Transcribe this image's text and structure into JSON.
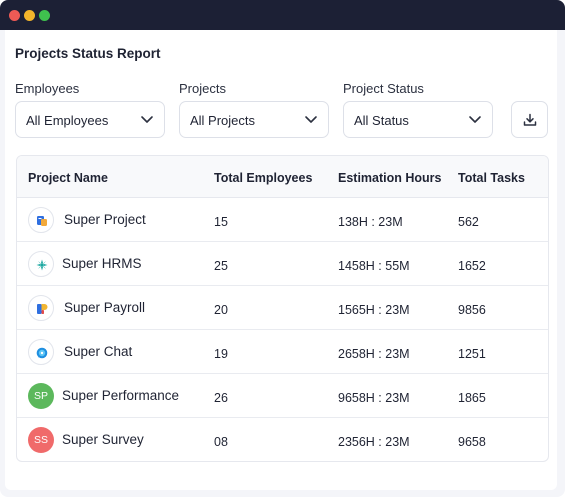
{
  "report": {
    "title": "Projects Status Report"
  },
  "filters": {
    "employees": {
      "label": "Employees",
      "value": "All Employees"
    },
    "projects": {
      "label": "Projects",
      "value": "All Projects"
    },
    "status": {
      "label": "Project Status",
      "value": "All Status"
    }
  },
  "table": {
    "headers": [
      "Project Name",
      "Total Employees",
      "Estimation Hours",
      "Total Tasks"
    ],
    "rows": [
      {
        "name": "Super Project",
        "employees": "15",
        "hours": "138H : 23M",
        "tasks": "562",
        "icon": "super-project-logo"
      },
      {
        "name": "Super HRMS",
        "employees": "25",
        "hours": "1458H : 55M",
        "tasks": "1652",
        "icon": "super-hrms-logo"
      },
      {
        "name": "Super Payroll",
        "employees": "20",
        "hours": "1565H : 23M",
        "tasks": "9856",
        "icon": "super-payroll-logo"
      },
      {
        "name": "Super Chat",
        "employees": "19",
        "hours": "2658H : 23M",
        "tasks": "1251",
        "icon": "super-chat-logo"
      },
      {
        "name": "Super Performance",
        "employees": "26",
        "hours": "9658H : 23M",
        "tasks": "1865",
        "avatar": "SP",
        "avatar_color": "#5cb85c"
      },
      {
        "name": "Super Survey",
        "employees": "08",
        "hours": "2356H : 23M",
        "tasks": "9658",
        "avatar": "SS",
        "avatar_color": "#f06a6a"
      }
    ]
  },
  "colors": {
    "titlebar": "#1c2035",
    "close": "#ef5a55",
    "minimize": "#f3b52b",
    "maximize": "#3fc14e"
  }
}
